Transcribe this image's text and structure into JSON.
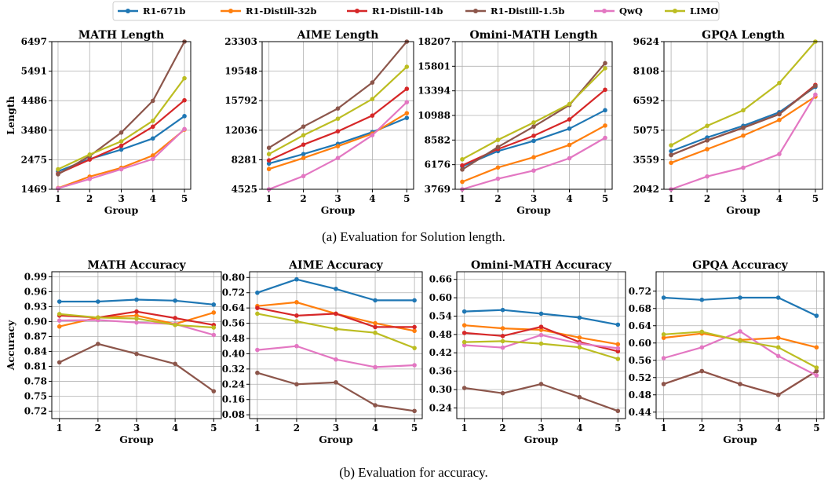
{
  "colors": {
    "R1-671b": "#1f77b4",
    "R1-Distill-32b": "#ff7f0e",
    "R1-Distill-14b": "#d62728",
    "R1-Distill-1.5b": "#8c564b",
    "QwQ": "#e377c2",
    "LIMO": "#bcbd22"
  },
  "legend": [
    "R1-671b",
    "R1-Distill-32b",
    "R1-Distill-14b",
    "R1-Distill-1.5b",
    "QwQ",
    "LIMO"
  ],
  "captions": {
    "a": "(a) Evaluation for Solution length.",
    "b": "(b) Evaluation for accuracy."
  },
  "chart_data": [
    {
      "type": "line",
      "title": "MATH Length",
      "xlabel": "Group",
      "ylabel": "Length",
      "categories": [
        1,
        2,
        3,
        4,
        5
      ],
      "ylim": [
        1469,
        6497
      ],
      "yticks": [
        "1469",
        "2475",
        "3480",
        "4486",
        "5491",
        "6497"
      ],
      "series": [
        {
          "name": "R1-671b",
          "values": [
            2080,
            2500,
            2820,
            3200,
            3960
          ]
        },
        {
          "name": "R1-Distill-32b",
          "values": [
            1510,
            1900,
            2200,
            2620,
            3500
          ]
        },
        {
          "name": "R1-Distill-14b",
          "values": [
            2000,
            2480,
            2950,
            3600,
            4500
          ]
        },
        {
          "name": "R1-Distill-1.5b",
          "values": [
            1980,
            2600,
            3400,
            4480,
            6497
          ]
        },
        {
          "name": "QwQ",
          "values": [
            1500,
            1820,
            2150,
            2500,
            3520
          ]
        },
        {
          "name": "LIMO",
          "values": [
            2150,
            2650,
            3100,
            3800,
            5250
          ]
        }
      ]
    },
    {
      "type": "line",
      "title": "AIME Length",
      "xlabel": "Group",
      "ylabel": "",
      "categories": [
        1,
        2,
        3,
        4,
        5
      ],
      "ylim": [
        4525,
        23303
      ],
      "yticks": [
        "4525",
        "8281",
        "12036",
        "15792",
        "19548",
        "23303"
      ],
      "series": [
        {
          "name": "R1-671b",
          "values": [
            7800,
            9000,
            10300,
            11800,
            13600
          ]
        },
        {
          "name": "R1-Distill-32b",
          "values": [
            7100,
            8500,
            10000,
            11600,
            14200
          ]
        },
        {
          "name": "R1-Distill-14b",
          "values": [
            8200,
            10200,
            11900,
            13900,
            17300
          ]
        },
        {
          "name": "R1-Distill-1.5b",
          "values": [
            9800,
            12500,
            14800,
            18100,
            23303
          ]
        },
        {
          "name": "QwQ",
          "values": [
            4525,
            6200,
            8500,
            11400,
            15600
          ]
        },
        {
          "name": "LIMO",
          "values": [
            9000,
            11400,
            13500,
            16000,
            20100
          ]
        }
      ]
    },
    {
      "type": "line",
      "title": "Omini-MATH Length",
      "xlabel": "Group",
      "ylabel": "",
      "categories": [
        1,
        2,
        3,
        4,
        5
      ],
      "ylim": [
        3769,
        18207
      ],
      "yticks": [
        "3769",
        "6176",
        "8582",
        "10988",
        "13394",
        "15801",
        "18207"
      ],
      "series": [
        {
          "name": "R1-671b",
          "values": [
            6000,
            7500,
            8500,
            9700,
            11500
          ]
        },
        {
          "name": "R1-Distill-32b",
          "values": [
            4500,
            5900,
            6900,
            8100,
            10000
          ]
        },
        {
          "name": "R1-Distill-14b",
          "values": [
            6100,
            7700,
            9000,
            10600,
            13500
          ]
        },
        {
          "name": "R1-Distill-1.5b",
          "values": [
            5700,
            7900,
            9900,
            12000,
            16100
          ]
        },
        {
          "name": "QwQ",
          "values": [
            3769,
            4800,
            5600,
            6800,
            8800
          ]
        },
        {
          "name": "LIMO",
          "values": [
            6700,
            8600,
            10300,
            12100,
            15600
          ]
        }
      ]
    },
    {
      "type": "line",
      "title": "GPQA Length",
      "xlabel": "Group",
      "ylabel": "",
      "categories": [
        1,
        2,
        3,
        4,
        5
      ],
      "ylim": [
        2042,
        9624
      ],
      "yticks": [
        "2042",
        "3559",
        "5075",
        "6592",
        "8108",
        "9624"
      ],
      "series": [
        {
          "name": "R1-671b",
          "values": [
            4000,
            4700,
            5300,
            6000,
            7300
          ]
        },
        {
          "name": "R1-Distill-32b",
          "values": [
            3400,
            4100,
            4800,
            5600,
            6800
          ]
        },
        {
          "name": "R1-Distill-14b",
          "values": [
            3800,
            4550,
            5200,
            5900,
            7400
          ]
        },
        {
          "name": "R1-Distill-1.5b",
          "values": [
            3800,
            4550,
            5200,
            5900,
            7350
          ]
        },
        {
          "name": "QwQ",
          "values": [
            2042,
            2700,
            3150,
            3850,
            6900
          ]
        },
        {
          "name": "LIMO",
          "values": [
            4300,
            5300,
            6100,
            7500,
            9624
          ]
        }
      ]
    },
    {
      "type": "line",
      "title": "MATH Accuracy",
      "xlabel": "Group",
      "ylabel": "Accuracy",
      "categories": [
        1,
        2,
        3,
        4,
        5
      ],
      "ylim": [
        0.705,
        1.0
      ],
      "yticks": [
        "0.72",
        "0.75",
        "0.78",
        "0.81",
        "0.84",
        "0.87",
        "0.90",
        "0.93",
        "0.96",
        "0.99"
      ],
      "series": [
        {
          "name": "R1-671b",
          "values": [
            0.94,
            0.94,
            0.944,
            0.942,
            0.934
          ]
        },
        {
          "name": "R1-Distill-32b",
          "values": [
            0.89,
            0.908,
            0.912,
            0.895,
            0.918
          ]
        },
        {
          "name": "R1-Distill-14b",
          "values": [
            0.912,
            0.908,
            0.92,
            0.907,
            0.893
          ]
        },
        {
          "name": "R1-Distill-1.5b",
          "values": [
            0.818,
            0.855,
            0.835,
            0.815,
            0.76
          ]
        },
        {
          "name": "QwQ",
          "values": [
            0.902,
            0.903,
            0.898,
            0.895,
            0.873
          ]
        },
        {
          "name": "LIMO",
          "values": [
            0.915,
            0.908,
            0.906,
            0.893,
            0.888
          ]
        }
      ]
    },
    {
      "type": "line",
      "title": "AIME Accuracy",
      "xlabel": "Group",
      "ylabel": "",
      "categories": [
        1,
        2,
        3,
        4,
        5
      ],
      "ylim": [
        0.06,
        0.83
      ],
      "yticks": [
        "0.08",
        "0.16",
        "0.24",
        "0.32",
        "0.40",
        "0.48",
        "0.56",
        "0.64",
        "0.72",
        "0.80"
      ],
      "series": [
        {
          "name": "R1-671b",
          "values": [
            0.72,
            0.79,
            0.74,
            0.68,
            0.68
          ]
        },
        {
          "name": "R1-Distill-32b",
          "values": [
            0.65,
            0.67,
            0.61,
            0.56,
            0.52
          ]
        },
        {
          "name": "R1-Distill-14b",
          "values": [
            0.64,
            0.6,
            0.61,
            0.54,
            0.54
          ]
        },
        {
          "name": "R1-Distill-1.5b",
          "values": [
            0.3,
            0.24,
            0.25,
            0.13,
            0.1
          ]
        },
        {
          "name": "QwQ",
          "values": [
            0.42,
            0.44,
            0.37,
            0.33,
            0.34
          ]
        },
        {
          "name": "LIMO",
          "values": [
            0.61,
            0.57,
            0.53,
            0.51,
            0.43
          ]
        }
      ]
    },
    {
      "type": "line",
      "title": "Omini-MATH Accuracy",
      "xlabel": "Group",
      "ylabel": "",
      "categories": [
        1,
        2,
        3,
        4,
        5
      ],
      "ylim": [
        0.205,
        0.685
      ],
      "yticks": [
        "0.24",
        "0.30",
        "0.36",
        "0.42",
        "0.48",
        "0.54",
        "0.60",
        "0.66"
      ],
      "series": [
        {
          "name": "R1-671b",
          "values": [
            0.555,
            0.56,
            0.548,
            0.535,
            0.512
          ]
        },
        {
          "name": "R1-Distill-32b",
          "values": [
            0.51,
            0.5,
            0.495,
            0.47,
            0.448
          ]
        },
        {
          "name": "R1-Distill-14b",
          "values": [
            0.485,
            0.475,
            0.505,
            0.455,
            0.425
          ]
        },
        {
          "name": "R1-Distill-1.5b",
          "values": [
            0.305,
            0.288,
            0.318,
            0.275,
            0.23
          ]
        },
        {
          "name": "QwQ",
          "values": [
            0.445,
            0.437,
            0.478,
            0.45,
            0.435
          ]
        },
        {
          "name": "LIMO",
          "values": [
            0.455,
            0.458,
            0.45,
            0.438,
            0.4
          ]
        }
      ]
    },
    {
      "type": "line",
      "title": "GPQA Accuracy",
      "xlabel": "Group",
      "ylabel": "",
      "categories": [
        1,
        2,
        3,
        4,
        5
      ],
      "ylim": [
        0.425,
        0.765
      ],
      "yticks": [
        "0.44",
        "0.48",
        "0.52",
        "0.56",
        "0.60",
        "0.64",
        "0.68",
        "0.72"
      ],
      "series": [
        {
          "name": "R1-671b",
          "values": [
            0.705,
            0.7,
            0.705,
            0.705,
            0.663
          ]
        },
        {
          "name": "R1-Distill-32b",
          "values": [
            0.612,
            0.622,
            0.607,
            0.612,
            0.59
          ]
        },
        {
          "name": "R1-Distill-14b",
          "values": [
            0.505,
            0.535,
            0.505,
            0.48,
            0.535
          ]
        },
        {
          "name": "R1-Distill-1.5b",
          "values": [
            0.505,
            0.535,
            0.505,
            0.48,
            0.535
          ]
        },
        {
          "name": "QwQ",
          "values": [
            0.565,
            0.59,
            0.627,
            0.57,
            0.525
          ]
        },
        {
          "name": "LIMO",
          "values": [
            0.62,
            0.626,
            0.605,
            0.59,
            0.543
          ]
        }
      ]
    }
  ]
}
